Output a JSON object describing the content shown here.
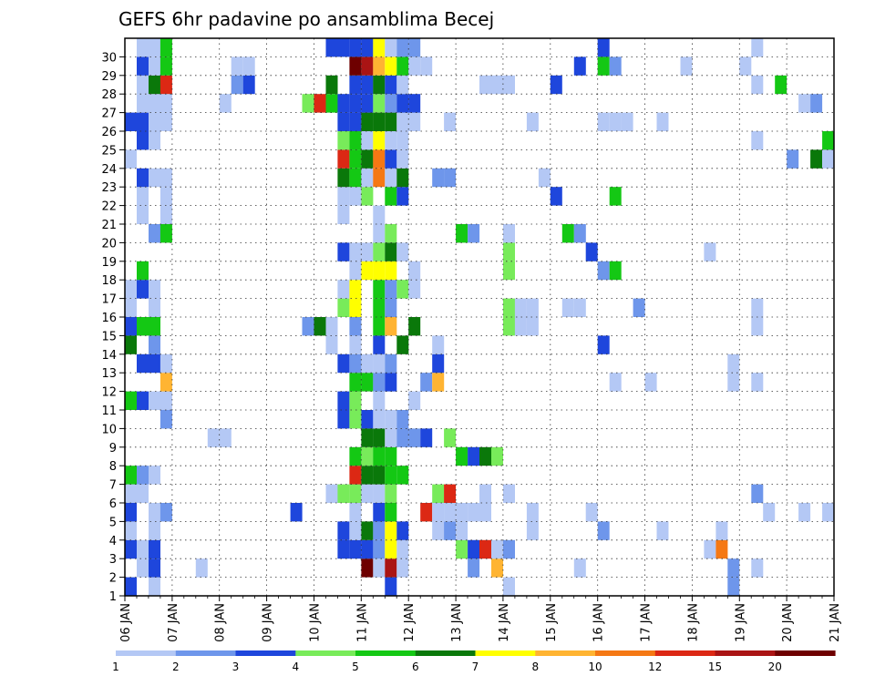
{
  "chart_data": {
    "type": "heatmap",
    "title": "GEFS 6hr padavine po ansamblima Becej",
    "x_tick_labels": [
      "06 JAN",
      "07 JAN",
      "08 JAN",
      "09 JAN",
      "10 JAN",
      "11 JAN",
      "12 JAN",
      "13 JAN",
      "14 JAN",
      "15 JAN",
      "16 JAN",
      "17 JAN",
      "18 JAN",
      "19 JAN",
      "20 JAN",
      "21 JAN"
    ],
    "y_tick_labels": [
      "1",
      "2",
      "3",
      "4",
      "5",
      "6",
      "7",
      "8",
      "9",
      "10",
      "11",
      "12",
      "13",
      "14",
      "15",
      "16",
      "17",
      "18",
      "19",
      "20",
      "21",
      "22",
      "23",
      "24",
      "25",
      "26",
      "27",
      "28",
      "29",
      "30"
    ],
    "x_range_steps": [
      0,
      60
    ],
    "y_range": [
      0,
      30
    ],
    "legend_labels": [
      "1",
      "2",
      "3",
      "4",
      "5",
      "6",
      "7",
      "8",
      "10",
      "12",
      "15",
      "20"
    ],
    "legend_colors": [
      "#b4c8f5",
      "#6e96eb",
      "#1e46dc",
      "#78eb5a",
      "#14c814",
      "#0a780a",
      "#ffff00",
      "#ffb432",
      "#f57814",
      "#dc2814",
      "#aa1414",
      "#6e0000"
    ],
    "grid": true,
    "cells": [
      [
        0,
        1,
        1
      ],
      [
        0,
        2,
        1
      ],
      [
        0,
        5,
        1
      ],
      [
        0,
        6,
        2
      ],
      [
        0,
        10,
        3
      ],
      [
        0,
        12,
        3
      ],
      [
        0,
        14,
        5
      ],
      [
        0,
        16,
        3
      ],
      [
        0,
        17,
        5
      ],
      [
        0,
        20,
        1
      ],
      [
        0,
        21,
        1
      ],
      [
        0,
        22,
        3
      ],
      [
        0,
        24,
        3
      ],
      [
        0,
        25,
        3
      ],
      [
        0,
        26,
        1
      ],
      [
        0,
        27,
        1
      ],
      [
        0,
        28,
        3
      ],
      [
        0,
        29,
        1
      ],
      [
        -1,
        0,
        3
      ],
      [
        -1,
        2,
        3
      ],
      [
        -1,
        3,
        1
      ],
      [
        -1,
        4,
        3
      ],
      [
        -1,
        5,
        1
      ],
      [
        -1,
        6,
        5
      ],
      [
        -1,
        10,
        5
      ],
      [
        -1,
        13,
        6
      ],
      [
        -1,
        14,
        3
      ],
      [
        -1,
        15,
        1
      ],
      [
        -1,
        16,
        1
      ],
      [
        -1,
        23,
        1
      ],
      [
        -1,
        25,
        3
      ],
      [
        1,
        0,
        1
      ],
      [
        1,
        1,
        3
      ],
      [
        1,
        2,
        3
      ],
      [
        1,
        3,
        1
      ],
      [
        1,
        4,
        1
      ],
      [
        1,
        6,
        1
      ],
      [
        1,
        10,
        1
      ],
      [
        1,
        12,
        3
      ],
      [
        1,
        13,
        2
      ],
      [
        1,
        14,
        5
      ],
      [
        1,
        15,
        1
      ],
      [
        1,
        16,
        1
      ],
      [
        1,
        19,
        2
      ],
      [
        1,
        22,
        1
      ],
      [
        1,
        24,
        1
      ],
      [
        1,
        25,
        1
      ],
      [
        1,
        26,
        1
      ],
      [
        1,
        27,
        6
      ],
      [
        1,
        28,
        1
      ],
      [
        1,
        29,
        1
      ],
      [
        2,
        4,
        2
      ],
      [
        2,
        9,
        2
      ],
      [
        2,
        10,
        1
      ],
      [
        2,
        11,
        8
      ],
      [
        2,
        12,
        1
      ],
      [
        2,
        19,
        5
      ],
      [
        2,
        20,
        1
      ],
      [
        2,
        21,
        1
      ],
      [
        2,
        22,
        1
      ],
      [
        2,
        25,
        1
      ],
      [
        2,
        26,
        1
      ],
      [
        2,
        27,
        10
      ],
      [
        2,
        28,
        5
      ],
      [
        2,
        29,
        5
      ],
      [
        5,
        1,
        1
      ],
      [
        6,
        8,
        1
      ],
      [
        7,
        8,
        1
      ],
      [
        7,
        26,
        1
      ],
      [
        8,
        27,
        2
      ],
      [
        9,
        27,
        3
      ],
      [
        9,
        28,
        1
      ],
      [
        8,
        28,
        1
      ],
      [
        13,
        4,
        3
      ],
      [
        14,
        14,
        2
      ],
      [
        14,
        26,
        4
      ],
      [
        15,
        14,
        6
      ],
      [
        15,
        26,
        10
      ],
      [
        16,
        5,
        1
      ],
      [
        16,
        13,
        1
      ],
      [
        16,
        14,
        1
      ],
      [
        16,
        27,
        6
      ],
      [
        16,
        26,
        5
      ],
      [
        16,
        29,
        3
      ],
      [
        17,
        2,
        3
      ],
      [
        17,
        3,
        3
      ],
      [
        17,
        5,
        4
      ],
      [
        17,
        9,
        3
      ],
      [
        17,
        10,
        3
      ],
      [
        17,
        12,
        3
      ],
      [
        17,
        15,
        4
      ],
      [
        17,
        16,
        1
      ],
      [
        17,
        18,
        3
      ],
      [
        17,
        20,
        1
      ],
      [
        17,
        21,
        1
      ],
      [
        17,
        22,
        6
      ],
      [
        17,
        23,
        10
      ],
      [
        17,
        24,
        4
      ],
      [
        17,
        25,
        3
      ],
      [
        17,
        26,
        3
      ],
      [
        17,
        29,
        3
      ],
      [
        18,
        2,
        3
      ],
      [
        18,
        3,
        1
      ],
      [
        18,
        4,
        1
      ],
      [
        18,
        5,
        4
      ],
      [
        18,
        6,
        10
      ],
      [
        18,
        7,
        5
      ],
      [
        18,
        9,
        4
      ],
      [
        18,
        10,
        4
      ],
      [
        18,
        11,
        5
      ],
      [
        18,
        12,
        2
      ],
      [
        18,
        13,
        1
      ],
      [
        18,
        14,
        2
      ],
      [
        18,
        15,
        7
      ],
      [
        18,
        16,
        7
      ],
      [
        18,
        17,
        1
      ],
      [
        18,
        18,
        1
      ],
      [
        18,
        21,
        1
      ],
      [
        18,
        22,
        5
      ],
      [
        18,
        23,
        5
      ],
      [
        18,
        24,
        5
      ],
      [
        18,
        25,
        3
      ],
      [
        18,
        26,
        3
      ],
      [
        18,
        27,
        3
      ],
      [
        18,
        28,
        12
      ],
      [
        18,
        29,
        3
      ],
      [
        19,
        1,
        12
      ],
      [
        19,
        2,
        3
      ],
      [
        19,
        3,
        6
      ],
      [
        19,
        5,
        1
      ],
      [
        19,
        6,
        6
      ],
      [
        19,
        7,
        4
      ],
      [
        19,
        8,
        6
      ],
      [
        19,
        9,
        3
      ],
      [
        19,
        11,
        5
      ],
      [
        19,
        12,
        1
      ],
      [
        19,
        17,
        7
      ],
      [
        19,
        18,
        1
      ],
      [
        19,
        21,
        4
      ],
      [
        19,
        22,
        1
      ],
      [
        19,
        23,
        6
      ],
      [
        19,
        24,
        1
      ],
      [
        19,
        25,
        6
      ],
      [
        19,
        26,
        3
      ],
      [
        19,
        27,
        3
      ],
      [
        19,
        28,
        11
      ],
      [
        19,
        29,
        3
      ],
      [
        20,
        1,
        13
      ],
      [
        20,
        2,
        2
      ],
      [
        20,
        3,
        2
      ],
      [
        20,
        4,
        3
      ],
      [
        20,
        5,
        1
      ],
      [
        20,
        6,
        6
      ],
      [
        20,
        7,
        5
      ],
      [
        20,
        8,
        6
      ],
      [
        20,
        9,
        1
      ],
      [
        20,
        10,
        1
      ],
      [
        20,
        11,
        2
      ],
      [
        20,
        12,
        13
      ],
      [
        20,
        13,
        3
      ],
      [
        20,
        14,
        5
      ],
      [
        20,
        15,
        5
      ],
      [
        20,
        16,
        5
      ],
      [
        20,
        17,
        7
      ],
      [
        20,
        18,
        4
      ],
      [
        20,
        19,
        1
      ],
      [
        20,
        20,
        1
      ],
      [
        20,
        22,
        9
      ],
      [
        20,
        23,
        9
      ],
      [
        20,
        24,
        7
      ],
      [
        20,
        25,
        6
      ],
      [
        20,
        26,
        4
      ],
      [
        20,
        27,
        6
      ],
      [
        20,
        28,
        8
      ],
      [
        20,
        29,
        7
      ],
      [
        21,
        0,
        3
      ],
      [
        21,
        1,
        11
      ],
      [
        21,
        2,
        7
      ],
      [
        21,
        3,
        7
      ],
      [
        21,
        4,
        5
      ],
      [
        21,
        5,
        4
      ],
      [
        21,
        6,
        5
      ],
      [
        21,
        7,
        5
      ],
      [
        21,
        8,
        1
      ],
      [
        21,
        9,
        1
      ],
      [
        21,
        11,
        3
      ],
      [
        21,
        12,
        2
      ],
      [
        21,
        14,
        8
      ],
      [
        21,
        15,
        2
      ],
      [
        21,
        16,
        2
      ],
      [
        21,
        17,
        7
      ],
      [
        21,
        18,
        6
      ],
      [
        21,
        19,
        4
      ],
      [
        21,
        21,
        5
      ],
      [
        21,
        22,
        1
      ],
      [
        21,
        23,
        3
      ],
      [
        21,
        24,
        1
      ],
      [
        21,
        25,
        6
      ],
      [
        21,
        26,
        2
      ],
      [
        21,
        27,
        3
      ],
      [
        21,
        28,
        7
      ],
      [
        21,
        29,
        1
      ],
      [
        22,
        1,
        1
      ],
      [
        22,
        2,
        1
      ],
      [
        22,
        3,
        3
      ],
      [
        22,
        6,
        5
      ],
      [
        22,
        8,
        2
      ],
      [
        22,
        9,
        2
      ],
      [
        22,
        13,
        6
      ],
      [
        22,
        16,
        4
      ],
      [
        22,
        18,
        1
      ],
      [
        22,
        21,
        3
      ],
      [
        22,
        22,
        6
      ],
      [
        22,
        23,
        1
      ],
      [
        22,
        24,
        1
      ],
      [
        22,
        25,
        1
      ],
      [
        22,
        26,
        3
      ],
      [
        22,
        27,
        1
      ],
      [
        22,
        28,
        5
      ],
      [
        22,
        29,
        2
      ],
      [
        23,
        8,
        2
      ],
      [
        23,
        10,
        1
      ],
      [
        23,
        14,
        6
      ],
      [
        23,
        16,
        1
      ],
      [
        23,
        17,
        1
      ],
      [
        23,
        25,
        1
      ],
      [
        23,
        26,
        3
      ],
      [
        23,
        28,
        1
      ],
      [
        23,
        29,
        2
      ],
      [
        24,
        4,
        10
      ],
      [
        24,
        8,
        3
      ],
      [
        24,
        11,
        2
      ],
      [
        24,
        28,
        1
      ],
      [
        25,
        3,
        1
      ],
      [
        25,
        4,
        1
      ],
      [
        25,
        5,
        4
      ],
      [
        25,
        11,
        8
      ],
      [
        25,
        12,
        3
      ],
      [
        25,
        13,
        1
      ],
      [
        25,
        22,
        2
      ],
      [
        26,
        3,
        2
      ],
      [
        26,
        4,
        1
      ],
      [
        26,
        5,
        10
      ],
      [
        26,
        8,
        4
      ],
      [
        26,
        22,
        2
      ],
      [
        26,
        25,
        1
      ],
      [
        27,
        2,
        4
      ],
      [
        27,
        3,
        1
      ],
      [
        27,
        4,
        1
      ],
      [
        27,
        7,
        5
      ],
      [
        27,
        19,
        5
      ],
      [
        28,
        1,
        2
      ],
      [
        28,
        2,
        3
      ],
      [
        28,
        4,
        1
      ],
      [
        28,
        7,
        3
      ],
      [
        28,
        19,
        2
      ],
      [
        29,
        2,
        10
      ],
      [
        29,
        4,
        1
      ],
      [
        29,
        5,
        1
      ],
      [
        29,
        7,
        6
      ],
      [
        29,
        27,
        1
      ],
      [
        30,
        1,
        8
      ],
      [
        30,
        2,
        1
      ],
      [
        30,
        7,
        4
      ],
      [
        30,
        27,
        1
      ],
      [
        31,
        0,
        1
      ],
      [
        31,
        2,
        2
      ],
      [
        31,
        5,
        1
      ],
      [
        31,
        14,
        4
      ],
      [
        31,
        15,
        4
      ],
      [
        31,
        17,
        4
      ],
      [
        31,
        18,
        4
      ],
      [
        31,
        19,
        1
      ],
      [
        31,
        27,
        1
      ],
      [
        32,
        14,
        1
      ],
      [
        32,
        15,
        1
      ],
      [
        33,
        3,
        1
      ],
      [
        33,
        4,
        1
      ],
      [
        33,
        14,
        1
      ],
      [
        33,
        15,
        1
      ],
      [
        33,
        25,
        1
      ],
      [
        34,
        22,
        1
      ],
      [
        35,
        21,
        3
      ],
      [
        35,
        27,
        3
      ],
      [
        36,
        15,
        1
      ],
      [
        36,
        19,
        5
      ],
      [
        37,
        1,
        1
      ],
      [
        37,
        15,
        1
      ],
      [
        37,
        19,
        2
      ],
      [
        37,
        28,
        3
      ],
      [
        38,
        4,
        1
      ],
      [
        38,
        18,
        3
      ],
      [
        39,
        3,
        2
      ],
      [
        39,
        13,
        3
      ],
      [
        39,
        17,
        2
      ],
      [
        39,
        25,
        1
      ],
      [
        39,
        28,
        5
      ],
      [
        39,
        29,
        3
      ],
      [
        40,
        11,
        1
      ],
      [
        40,
        17,
        5
      ],
      [
        40,
        21,
        5
      ],
      [
        40,
        25,
        1
      ],
      [
        40,
        28,
        2
      ],
      [
        41,
        25,
        1
      ],
      [
        42,
        15,
        2
      ],
      [
        43,
        11,
        1
      ],
      [
        44,
        3,
        1
      ],
      [
        44,
        25,
        1
      ],
      [
        46,
        28,
        1
      ],
      [
        48,
        2,
        1
      ],
      [
        48,
        18,
        1
      ],
      [
        49,
        2,
        9
      ],
      [
        49,
        3,
        1
      ],
      [
        50,
        0,
        2
      ],
      [
        50,
        1,
        2
      ],
      [
        50,
        11,
        1
      ],
      [
        50,
        12,
        1
      ],
      [
        51,
        28,
        1
      ],
      [
        52,
        1,
        1
      ],
      [
        52,
        5,
        2
      ],
      [
        52,
        11,
        1
      ],
      [
        52,
        14,
        1
      ],
      [
        52,
        15,
        1
      ],
      [
        52,
        24,
        1
      ],
      [
        52,
        27,
        1
      ],
      [
        52,
        29,
        1
      ],
      [
        53,
        4,
        1
      ],
      [
        54,
        27,
        5
      ],
      [
        55,
        23,
        2
      ],
      [
        56,
        4,
        1
      ],
      [
        56,
        26,
        1
      ],
      [
        57,
        23,
        6
      ],
      [
        57,
        26,
        2
      ],
      [
        58,
        4,
        1
      ],
      [
        58,
        23,
        1
      ],
      [
        58,
        24,
        5
      ],
      [
        59,
        4,
        5
      ],
      [
        59,
        5,
        1
      ],
      [
        59,
        18,
        1
      ],
      [
        59,
        26,
        1
      ],
      [
        59,
        28,
        1
      ],
      [
        60,
        7,
        3
      ],
      [
        60,
        26,
        3
      ]
    ]
  }
}
